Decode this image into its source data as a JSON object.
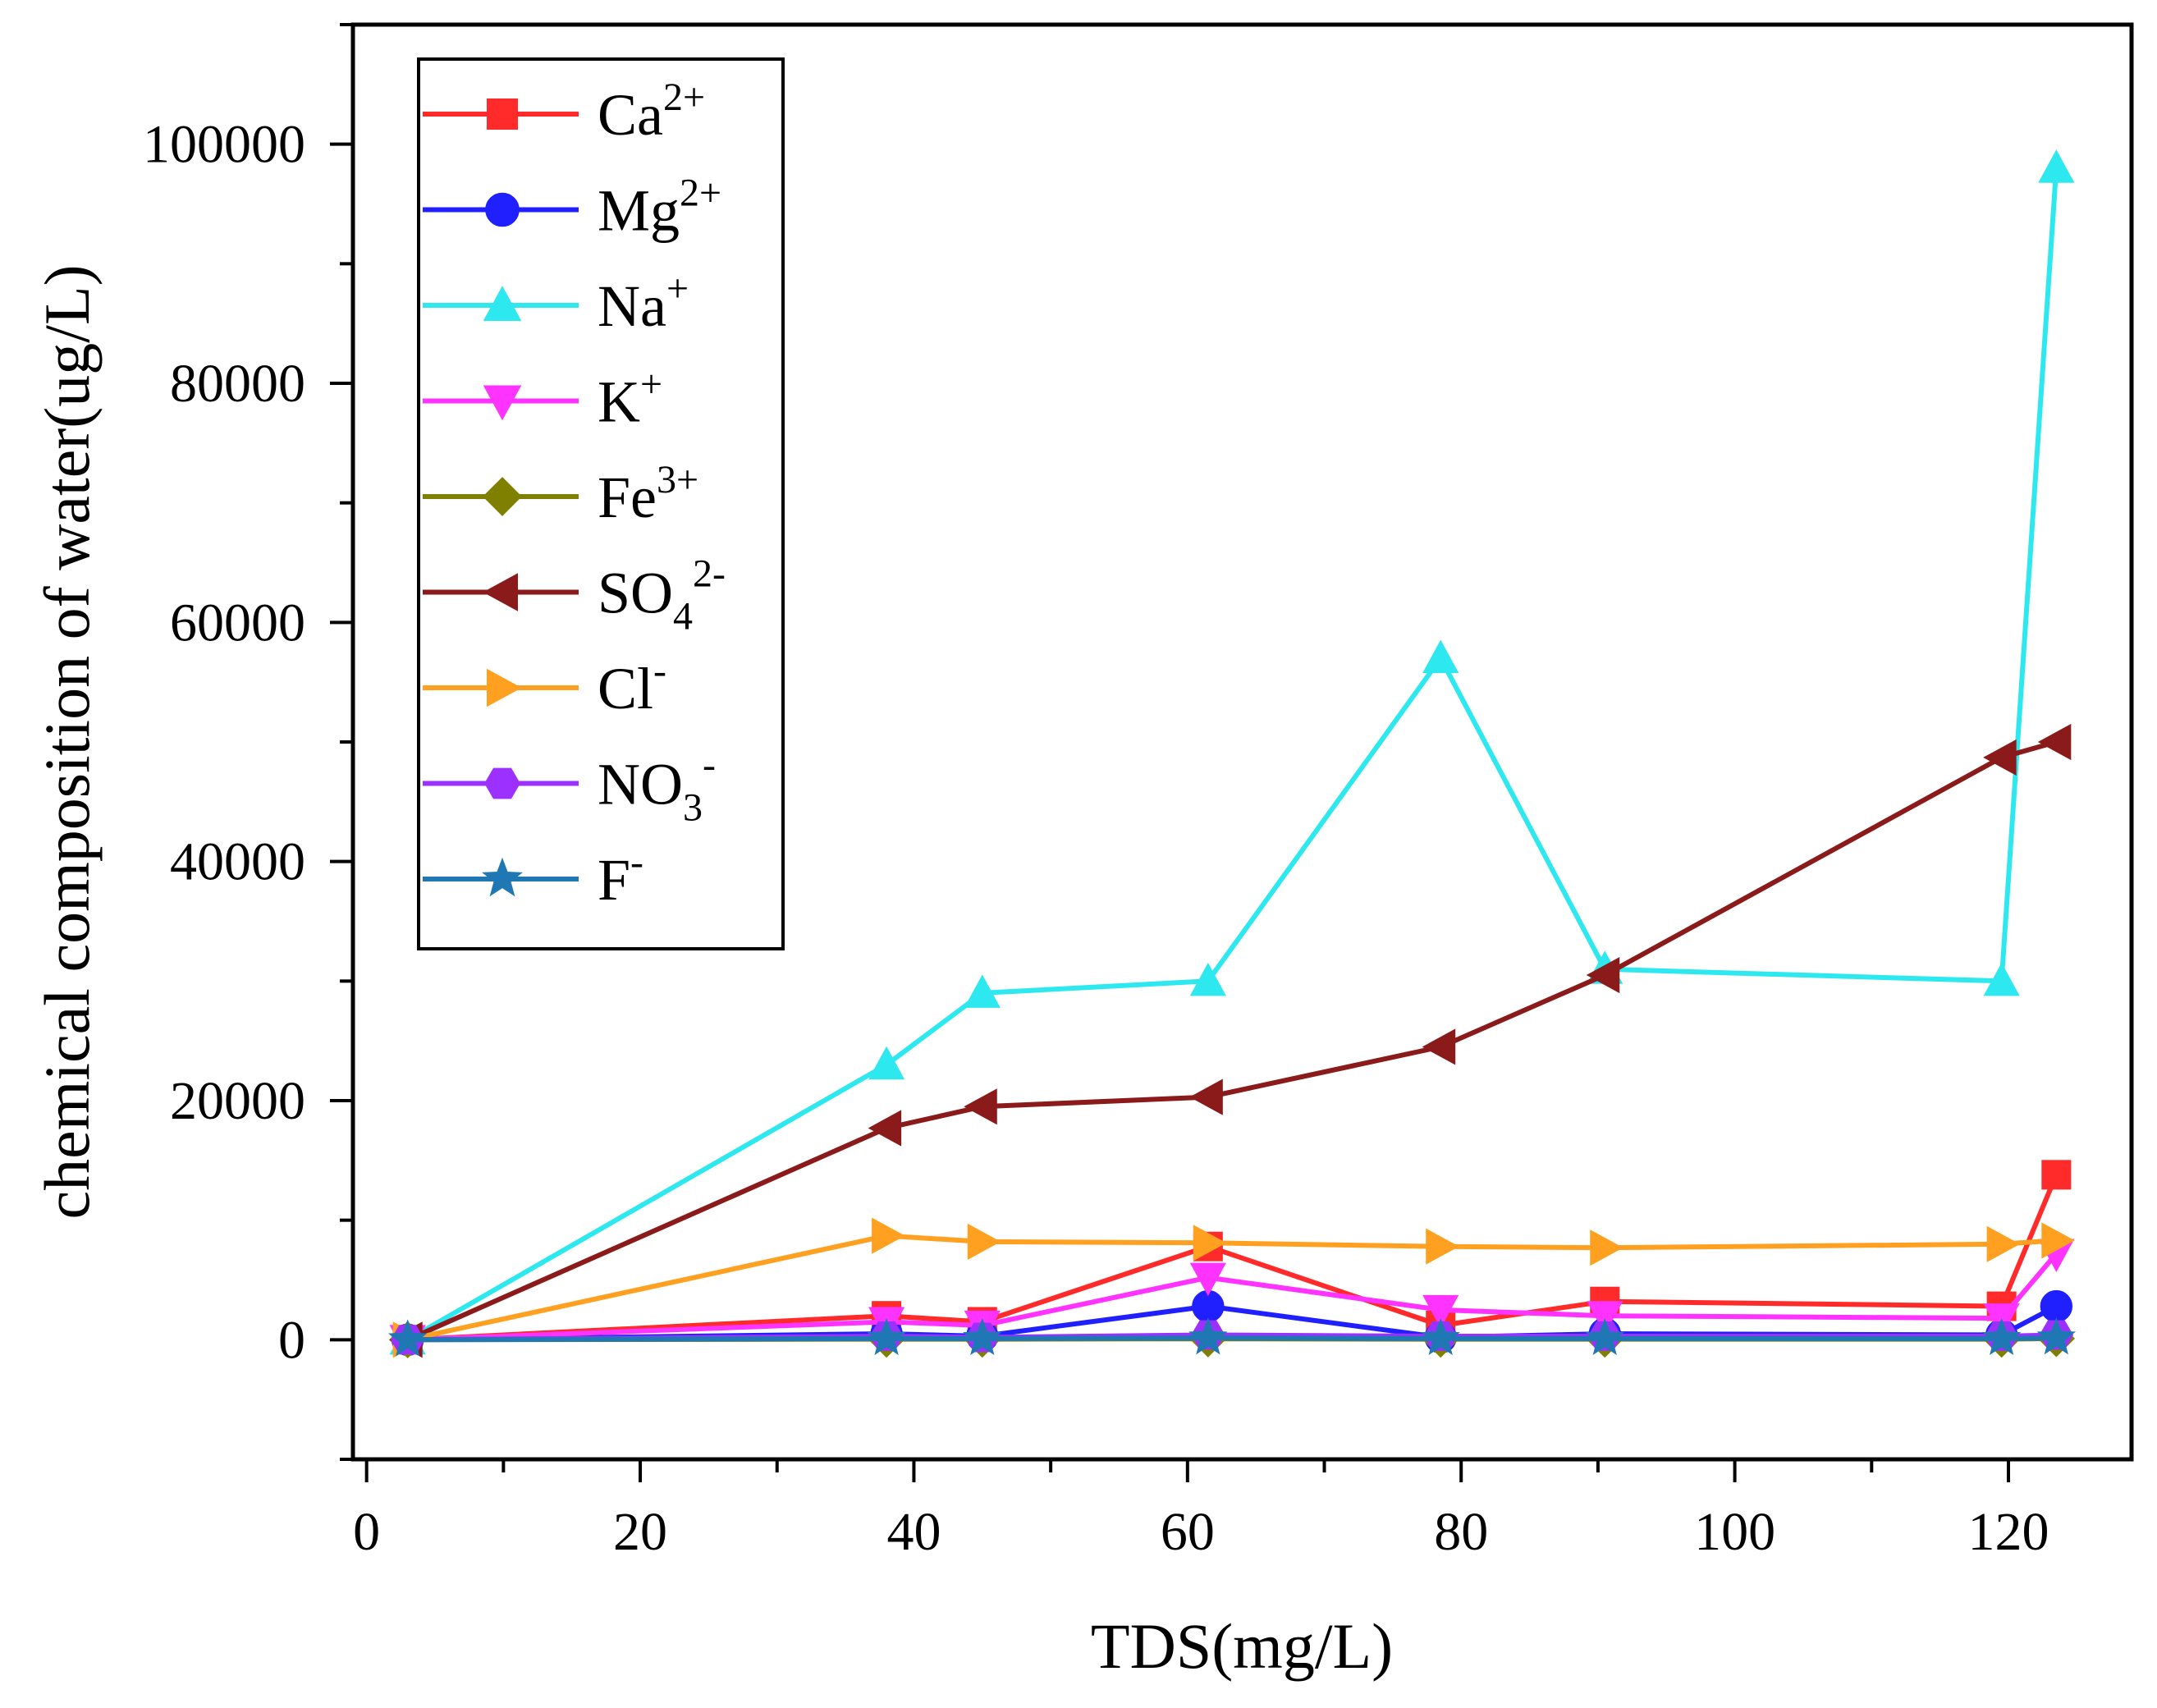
{
  "chart_data": {
    "type": "line",
    "title": "",
    "xlabel": "TDS(mg/L)",
    "ylabel": "chemical composition of water(ug/L)",
    "xlim": [
      -1,
      129
    ],
    "ylim": [
      -10000,
      110000
    ],
    "xticks": [
      0,
      20,
      40,
      60,
      80,
      100,
      120
    ],
    "xtick_labels": [
      "0",
      "20",
      "40",
      "60",
      "80",
      "100",
      "120"
    ],
    "yticks": [
      0,
      20000,
      40000,
      60000,
      80000,
      100000
    ],
    "ytick_labels": [
      "0",
      "20000",
      "40000",
      "60000",
      "80000",
      "100000"
    ],
    "grid": false,
    "legend_position": "top-left",
    "x": [
      3,
      38,
      45,
      61.5,
      78.5,
      90.5,
      119.5,
      123.5
    ],
    "series": [
      {
        "name": "Ca",
        "sup": "2+",
        "sub": "",
        "color": "#ff2a2a",
        "marker": "square",
        "values": [
          0,
          2000,
          1500,
          7800,
          1200,
          3200,
          2800,
          13800
        ]
      },
      {
        "name": "Mg",
        "sup": "2+",
        "sub": "",
        "color": "#2020ff",
        "marker": "circle",
        "values": [
          0,
          500,
          300,
          2800,
          200,
          500,
          400,
          2800
        ]
      },
      {
        "name": "Na",
        "sup": "+",
        "sub": "",
        "color": "#2ee8f0",
        "marker": "triangle-up",
        "values": [
          0,
          23000,
          29000,
          30000,
          57000,
          31000,
          30000,
          98000
        ]
      },
      {
        "name": "K",
        "sup": "+",
        "sub": "",
        "color": "#ff33ff",
        "marker": "triangle-down",
        "values": [
          0,
          1500,
          1200,
          5200,
          2500,
          2000,
          1800,
          7200
        ]
      },
      {
        "name": "Fe",
        "sup": "3+",
        "sub": "",
        "color": "#808000",
        "marker": "diamond",
        "values": [
          0,
          50,
          50,
          80,
          50,
          50,
          50,
          100
        ]
      },
      {
        "name": "SO",
        "sup": "2-",
        "sub": "4",
        "color": "#8b1a1a",
        "marker": "triangle-left",
        "values": [
          0,
          17700,
          19500,
          20300,
          24500,
          30500,
          48700,
          50000
        ]
      },
      {
        "name": "Cl",
        "sup": "-",
        "sub": "",
        "color": "#ffa020",
        "marker": "triangle-right",
        "values": [
          0,
          8700,
          8200,
          8100,
          7800,
          7700,
          8000,
          8300
        ]
      },
      {
        "name": "NO",
        "sup": "-",
        "sub": "3",
        "color": "#9b30ff",
        "marker": "hexagon",
        "values": [
          0,
          300,
          200,
          400,
          300,
          300,
          300,
          400
        ]
      },
      {
        "name": "F",
        "sup": "-",
        "sub": "",
        "color": "#1f77b4",
        "marker": "star",
        "values": [
          0,
          100,
          100,
          150,
          100,
          100,
          100,
          150
        ]
      }
    ]
  }
}
